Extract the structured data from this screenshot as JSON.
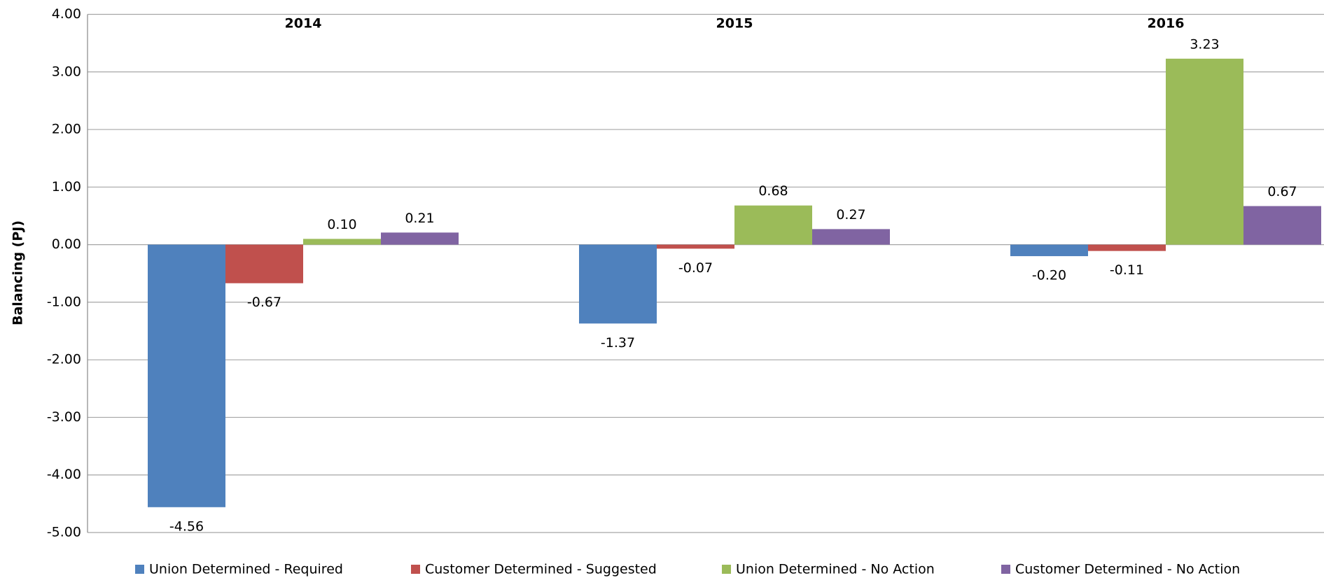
{
  "chart_data": {
    "type": "bar",
    "y_label": "Balancing (PJ)",
    "categories": [
      "2014",
      "2015",
      "2016"
    ],
    "series": [
      {
        "name": "Union Determined - Required",
        "color": "#4f81bd",
        "values": [
          -4.56,
          -1.37,
          -0.2
        ],
        "value_labels": [
          "-4.56",
          "-1.37",
          "-0.20"
        ]
      },
      {
        "name": "Customer Determined - Suggested",
        "color": "#c0504d",
        "values": [
          -0.67,
          -0.07,
          -0.11
        ],
        "value_labels": [
          "-0.67",
          "-0.07",
          "-0.11"
        ]
      },
      {
        "name": "Union Determined - No Action",
        "color": "#9bbb59",
        "values": [
          0.1,
          0.68,
          3.23
        ],
        "value_labels": [
          "0.10",
          "0.68",
          "3.23"
        ]
      },
      {
        "name": "Customer Determined - No Action",
        "color": "#8064a2",
        "values": [
          0.21,
          0.27,
          0.67
        ],
        "value_labels": [
          "0.21",
          "0.27",
          "0.67"
        ]
      }
    ],
    "ylim": [
      -5,
      4
    ],
    "yticks": [
      {
        "value": -5,
        "label": "-5.00"
      },
      {
        "value": -4,
        "label": "-4.00"
      },
      {
        "value": -3,
        "label": "-3.00"
      },
      {
        "value": -2,
        "label": "-2.00"
      },
      {
        "value": -1,
        "label": "-1.00"
      },
      {
        "value": 0,
        "label": "0.00"
      },
      {
        "value": 1,
        "label": "1.00"
      },
      {
        "value": 2,
        "label": "2.00"
      },
      {
        "value": 3,
        "label": "3.00"
      },
      {
        "value": 4,
        "label": "4.00"
      }
    ],
    "grid": true,
    "legend": "bottom"
  }
}
